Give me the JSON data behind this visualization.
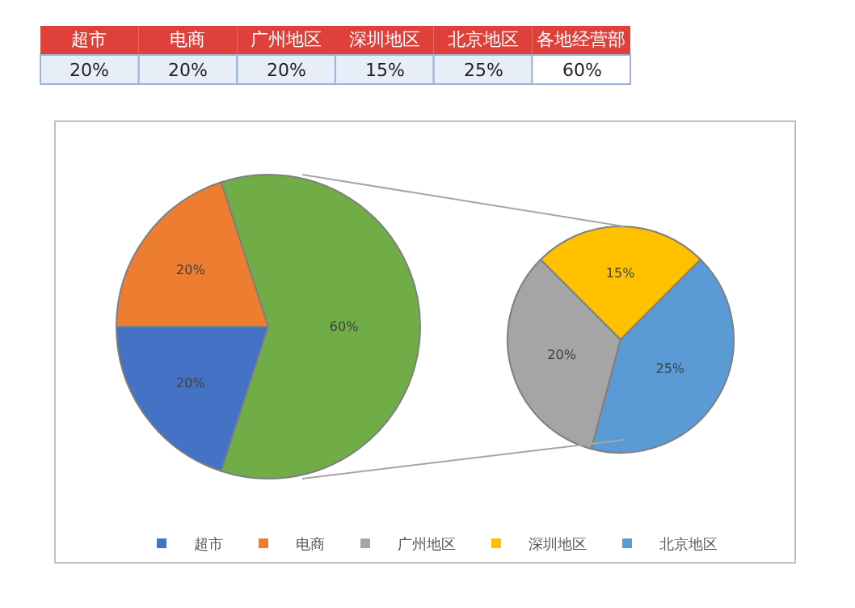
{
  "chart_data": [
    {
      "type": "other",
      "categories": [
        "超市",
        "电商",
        "广州地区",
        "深圳地区",
        "北京地区",
        "各地经营部"
      ],
      "value_labels": [
        "20%",
        "20%",
        "20%",
        "15%",
        "25%",
        "60%"
      ],
      "colors": [
        "#e0403a",
        "#e0403a",
        "#e0403a",
        "#e0403a",
        "#e0403a",
        "#e0403a"
      ]
    },
    {
      "type": "pie",
      "categories": [
        "超市",
        "电商",
        null
      ],
      "values": [
        20,
        20,
        60
      ],
      "colors": [
        "#4472c4",
        "#ed7d31",
        "#70ad47"
      ],
      "value_labels": [
        "20%",
        "20%",
        "60%"
      ],
      "legend": "bottom"
    },
    {
      "type": "pie",
      "categories": [
        "广州地区",
        "深圳地区",
        "北京地区"
      ],
      "values": [
        20,
        15,
        25
      ],
      "colors": [
        "#a5a5a5",
        "#ffc000",
        "#5b9bd5"
      ],
      "value_labels": [
        "20%",
        "15%",
        "25%"
      ],
      "legend": "bottom"
    }
  ]
}
